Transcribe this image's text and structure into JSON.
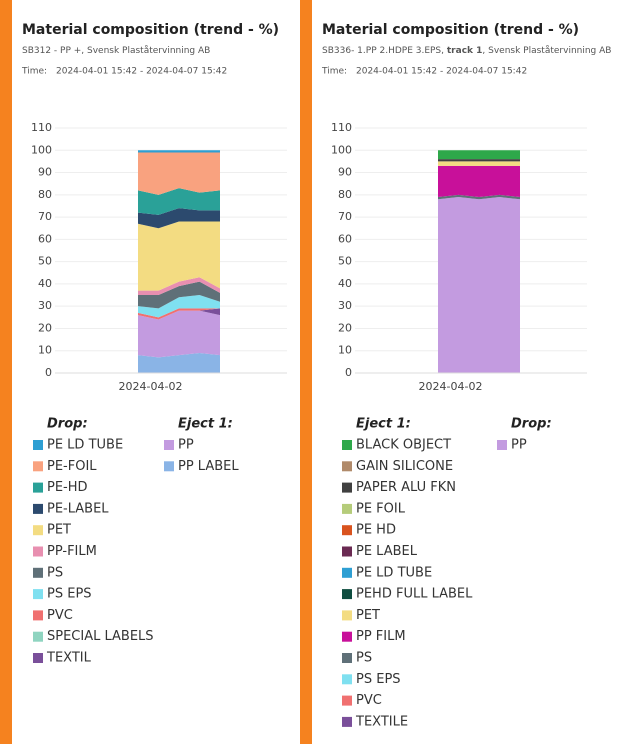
{
  "chart_data": [
    {
      "type": "stacked_area",
      "title": "Material composition (trend - %)",
      "subtitle": [
        "SB312 - PP +, Svensk Plaståtervinning AB"
      ],
      "time_label": "Time:",
      "time_range": "2024-04-01 15:42 - 2024-04-07 15:42",
      "categories": [
        null,
        "2024-04-02",
        null,
        null,
        null
      ],
      "ylim": [
        0,
        110
      ],
      "yticks": [
        0,
        10,
        20,
        30,
        40,
        50,
        60,
        70,
        80,
        90,
        100,
        110
      ],
      "grid": true,
      "series_groups": [
        {
          "title": "Drop:",
          "series": [
            {
              "name": "PE LD TUBE",
              "color": "#2e9fd3",
              "values": [
                1,
                1,
                1,
                1,
                1
              ]
            },
            {
              "name": "PE-FOIL",
              "color": "#f9a27f",
              "values": [
                17,
                19,
                16,
                18,
                17
              ]
            },
            {
              "name": "PE-HD",
              "color": "#2aa198",
              "values": [
                10,
                9,
                9,
                8,
                9
              ]
            },
            {
              "name": "PE-LABEL",
              "color": "#2c4a6e",
              "values": [
                5,
                6,
                6,
                5,
                5
              ]
            },
            {
              "name": "PET",
              "color": "#f3dc82",
              "values": [
                30,
                28,
                27,
                25,
                30
              ]
            },
            {
              "name": "PP-FILM",
              "color": "#e88fb0",
              "values": [
                2,
                2,
                2,
                2,
                2
              ]
            },
            {
              "name": "PS",
              "color": "#5f7078",
              "values": [
                5,
                6,
                5,
                6,
                4
              ]
            },
            {
              "name": "PS EPS",
              "color": "#7fe0f0",
              "values": [
                3,
                4,
                5,
                6,
                3
              ]
            },
            {
              "name": "PVC",
              "color": "#f07070",
              "values": [
                1,
                1,
                1,
                1,
                0
              ]
            },
            {
              "name": "SPECIAL LABELS",
              "color": "#8fd4c0",
              "values": [
                0,
                0,
                0,
                0,
                0
              ]
            },
            {
              "name": "TEXTIL",
              "color": "#7a4f9a",
              "values": [
                0,
                0,
                0,
                0,
                3
              ]
            }
          ]
        },
        {
          "title": "Eject 1:",
          "series": [
            {
              "name": "PP",
              "color": "#c39be0",
              "values": [
                18,
                17,
                20,
                19,
                18
              ]
            },
            {
              "name": "PP LABEL",
              "color": "#8ab4e6",
              "values": [
                8,
                7,
                8,
                9,
                8
              ]
            }
          ]
        }
      ]
    },
    {
      "type": "stacked_area",
      "title": "Material composition (trend - %)",
      "subtitle": [
        "SB336- 1.PP 2.HDPE 3.EPS, ",
        "track 1",
        ", Svensk Plaståtervinning AB"
      ],
      "time_label": "Time:",
      "time_range": "2024-04-01 15:42 - 2024-04-07 15:42",
      "categories": [
        null,
        "2024-04-02",
        null,
        null,
        null
      ],
      "ylim": [
        0,
        110
      ],
      "yticks": [
        0,
        10,
        20,
        30,
        40,
        50,
        60,
        70,
        80,
        90,
        100,
        110
      ],
      "grid": true,
      "series_groups": [
        {
          "title": "Eject 1:",
          "series": [
            {
              "name": "BLACK OBJECT",
              "color": "#2ea84a",
              "values": [
                4,
                4,
                4,
                4,
                4
              ]
            },
            {
              "name": "GAIN SILICONE",
              "color": "#b08a6a",
              "values": [
                0,
                0,
                0,
                0,
                0
              ]
            },
            {
              "name": "PAPER ALU FKN",
              "color": "#404040",
              "values": [
                1,
                1,
                1,
                1,
                1
              ]
            },
            {
              "name": "PE FOIL",
              "color": "#b5cc7a",
              "values": [
                0,
                0,
                0,
                0,
                0
              ]
            },
            {
              "name": "PE HD",
              "color": "#d9531e",
              "values": [
                0,
                0,
                0,
                0,
                0
              ]
            },
            {
              "name": "PE LABEL",
              "color": "#6a2a52",
              "values": [
                0,
                0,
                0,
                0,
                0
              ]
            },
            {
              "name": "PE LD TUBE",
              "color": "#2e9fd3",
              "values": [
                0,
                0,
                0,
                0,
                0
              ]
            },
            {
              "name": "PEHD FULL LABEL",
              "color": "#0f4d40",
              "values": [
                0,
                0,
                0,
                0,
                0
              ]
            },
            {
              "name": "PET",
              "color": "#f3dc82",
              "values": [
                2,
                2,
                2,
                2,
                2
              ]
            },
            {
              "name": "PP FILM",
              "color": "#c8109a",
              "values": [
                14,
                13,
                14,
                13,
                14
              ]
            },
            {
              "name": "PS",
              "color": "#5f7078",
              "values": [
                1,
                1,
                1,
                1,
                1
              ]
            },
            {
              "name": "PS EPS",
              "color": "#7fe0f0",
              "values": [
                0,
                0,
                0,
                0,
                0
              ]
            },
            {
              "name": "PVC",
              "color": "#f07070",
              "values": [
                0,
                0,
                0,
                0,
                0
              ]
            },
            {
              "name": "TEXTILE",
              "color": "#7a4f9a",
              "values": [
                0,
                0,
                0,
                0,
                0
              ]
            }
          ]
        },
        {
          "title": "Drop:",
          "series": [
            {
              "name": "PP",
              "color": "#c39be0",
              "values": [
                78,
                79,
                78,
                79,
                78
              ]
            }
          ]
        }
      ]
    }
  ]
}
